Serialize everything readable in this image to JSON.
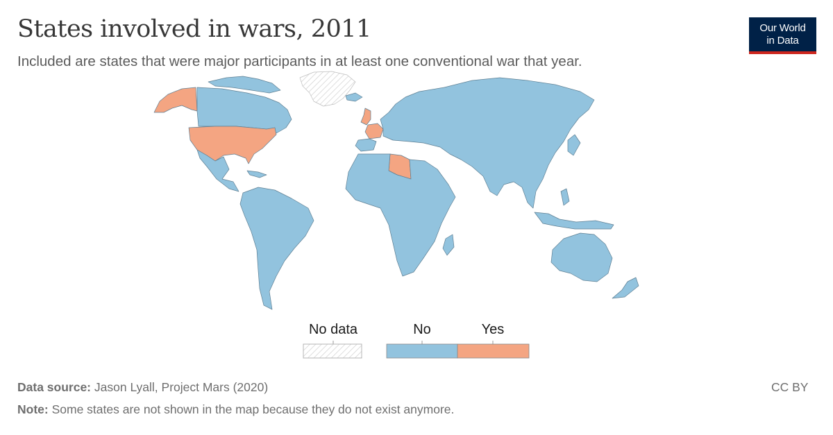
{
  "title": "States involved in wars, 2011",
  "subtitle": "Included are states that were major participants in at least one conventional war that year.",
  "logo": {
    "line1": "Our World",
    "line2": "in Data"
  },
  "legend": {
    "items": [
      {
        "label": "No data",
        "pattern": "hatched"
      },
      {
        "label": "No",
        "color": "#92c3de"
      },
      {
        "label": "Yes",
        "color": "#f4a582"
      }
    ]
  },
  "map_data": {
    "year": 2011,
    "categories": {
      "Yes": [
        "United States",
        "United Kingdom",
        "France",
        "Libya"
      ],
      "No data": [
        "Greenland"
      ],
      "No": "All other states shown"
    }
  },
  "colors": {
    "no": "#92c3de",
    "yes": "#f4a582",
    "border": "#5e7f93",
    "nodata_stroke": "#c8c8c8"
  },
  "footer": {
    "source_label": "Data source:",
    "source_text": "Jason Lyall, Project Mars (2020)",
    "note_label": "Note:",
    "note_text": "Some states are not shown in the map because they do not exist anymore.",
    "license": "CC BY"
  }
}
